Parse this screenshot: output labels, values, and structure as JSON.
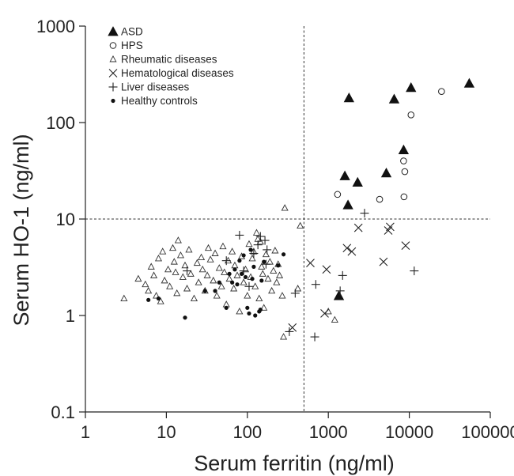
{
  "chart_data": {
    "type": "scatter",
    "title": "",
    "xlabel": "Serum ferritin (ng/ml)",
    "ylabel": "Serum HO-1 (ng/ml)",
    "xscale": "log",
    "yscale": "log",
    "xlim": [
      1,
      100000
    ],
    "ylim": [
      0.1,
      1000
    ],
    "xticks": [
      {
        "value": 1,
        "label": "1"
      },
      {
        "value": 10,
        "label": "10"
      },
      {
        "value": 100,
        "label": "100"
      },
      {
        "value": 1000,
        "label": "1000"
      },
      {
        "value": 10000,
        "label": "10000"
      },
      {
        "value": 100000,
        "label": "100000"
      }
    ],
    "yticks": [
      {
        "value": 0.1,
        "label": "0.1"
      },
      {
        "value": 1,
        "label": "1"
      },
      {
        "value": 10,
        "label": "10"
      },
      {
        "value": 100,
        "label": "100"
      },
      {
        "value": 1000,
        "label": "1000"
      }
    ],
    "reference_lines": [
      {
        "axis": "x",
        "value": 500,
        "style": "dashed"
      },
      {
        "axis": "y",
        "value": 10,
        "style": "dashed"
      }
    ],
    "legend_position": "top-left",
    "grid": false,
    "series": [
      {
        "name": "ASD",
        "marker": "filled-triangle",
        "points": [
          [
            1800,
            180
          ],
          [
            6500,
            175
          ],
          [
            10500,
            230
          ],
          [
            55000,
            255
          ],
          [
            8500,
            52
          ],
          [
            1600,
            28
          ],
          [
            2300,
            24
          ],
          [
            5200,
            30
          ],
          [
            1750,
            14
          ],
          [
            1350,
            1.6
          ]
        ]
      },
      {
        "name": "HPS",
        "marker": "open-circle",
        "points": [
          [
            25000,
            210
          ],
          [
            10500,
            120
          ],
          [
            8500,
            40
          ],
          [
            8800,
            31
          ],
          [
            8600,
            17
          ],
          [
            4300,
            16
          ],
          [
            1300,
            18
          ]
        ]
      },
      {
        "name": "Rheumatic diseases",
        "marker": "open-triangle",
        "points": [
          [
            3,
            1.5
          ],
          [
            4.5,
            2.4
          ],
          [
            5.5,
            2.1
          ],
          [
            6,
            1.8
          ],
          [
            6.5,
            3.2
          ],
          [
            7,
            2.6
          ],
          [
            7.5,
            1.6
          ],
          [
            8,
            3.9
          ],
          [
            8.5,
            1.4
          ],
          [
            9,
            4.6
          ],
          [
            9.5,
            2.3
          ],
          [
            10.5,
            3.0
          ],
          [
            11,
            2.0
          ],
          [
            12,
            5.0
          ],
          [
            12.5,
            3.6
          ],
          [
            13,
            2.8
          ],
          [
            13.5,
            1.7
          ],
          [
            14,
            6.0
          ],
          [
            15,
            4.2
          ],
          [
            16,
            2.5
          ],
          [
            17,
            3.3
          ],
          [
            18,
            1.9
          ],
          [
            19,
            4.8
          ],
          [
            20,
            2.7
          ],
          [
            22,
            1.5
          ],
          [
            24,
            3.5
          ],
          [
            25,
            2.2
          ],
          [
            27,
            4.0
          ],
          [
            28,
            3.0
          ],
          [
            30,
            1.8
          ],
          [
            32,
            2.6
          ],
          [
            33,
            5.0
          ],
          [
            35,
            3.8
          ],
          [
            38,
            2.3
          ],
          [
            40,
            4.4
          ],
          [
            42,
            1.6
          ],
          [
            45,
            3.1
          ],
          [
            48,
            2.0
          ],
          [
            50,
            5.2
          ],
          [
            52,
            2.8
          ],
          [
            55,
            1.3
          ],
          [
            58,
            3.7
          ],
          [
            60,
            2.4
          ],
          [
            65,
            4.6
          ],
          [
            68,
            1.9
          ],
          [
            70,
            3.3
          ],
          [
            75,
            2.6
          ],
          [
            80,
            1.1
          ],
          [
            85,
            4.1
          ],
          [
            90,
            2.2
          ],
          [
            95,
            3.0
          ],
          [
            100,
            1.6
          ],
          [
            105,
            5.5
          ],
          [
            110,
            2.5
          ],
          [
            115,
            3.9
          ],
          [
            120,
            4.6
          ],
          [
            125,
            2.0
          ],
          [
            130,
            7.2
          ],
          [
            135,
            6.2
          ],
          [
            140,
            1.5
          ],
          [
            145,
            5.8
          ],
          [
            150,
            3.2
          ],
          [
            155,
            2.7
          ],
          [
            160,
            1.2
          ],
          [
            170,
            4.3
          ],
          [
            180,
            2.4
          ],
          [
            190,
            3.6
          ],
          [
            200,
            1.8
          ],
          [
            210,
            2.9
          ],
          [
            220,
            4.7
          ],
          [
            230,
            2.2
          ],
          [
            240,
            3.4
          ],
          [
            250,
            2.6
          ],
          [
            270,
            1.6
          ],
          [
            280,
            0.6
          ],
          [
            290,
            13.0
          ],
          [
            420,
            1.9
          ],
          [
            450,
            8.5
          ],
          [
            1200,
            0.9
          ],
          [
            1000,
            1.1
          ]
        ]
      },
      {
        "name": "Hematological diseases",
        "marker": "x",
        "points": [
          [
            360,
            0.75
          ],
          [
            900,
            1.05
          ],
          [
            600,
            3.5
          ],
          [
            950,
            3.0
          ],
          [
            1700,
            5.0
          ],
          [
            1950,
            4.6
          ],
          [
            2350,
            8.1
          ],
          [
            4800,
            3.6
          ],
          [
            5500,
            7.6
          ],
          [
            5800,
            8.3
          ],
          [
            9000,
            5.3
          ]
        ]
      },
      {
        "name": "Liver diseases",
        "marker": "plus",
        "points": [
          [
            18,
            2.9
          ],
          [
            55,
            3.7
          ],
          [
            80,
            6.8
          ],
          [
            90,
            2.9
          ],
          [
            105,
            2.0
          ],
          [
            120,
            4.4
          ],
          [
            135,
            5.4
          ],
          [
            145,
            6.6
          ],
          [
            165,
            6.0
          ],
          [
            170,
            3.4
          ],
          [
            175,
            4.8
          ],
          [
            390,
            1.7
          ],
          [
            330,
            0.68
          ],
          [
            700,
            2.1
          ],
          [
            1400,
            1.8
          ],
          [
            1500,
            2.6
          ],
          [
            2800,
            11.5
          ],
          [
            11500,
            2.9
          ],
          [
            680,
            0.6
          ]
        ]
      },
      {
        "name": "Healthy controls",
        "marker": "filled-circle",
        "points": [
          [
            6,
            1.45
          ],
          [
            8,
            1.5
          ],
          [
            17,
            0.95
          ],
          [
            30,
            1.8
          ],
          [
            40,
            1.8
          ],
          [
            45,
            2.2
          ],
          [
            55,
            1.2
          ],
          [
            60,
            2.7
          ],
          [
            65,
            2.2
          ],
          [
            70,
            3.0
          ],
          [
            75,
            2.1
          ],
          [
            80,
            3.7
          ],
          [
            85,
            2.7
          ],
          [
            90,
            4.2
          ],
          [
            95,
            2.5
          ],
          [
            100,
            1.2
          ],
          [
            105,
            1.05
          ],
          [
            110,
            4.8
          ],
          [
            115,
            2.4
          ],
          [
            120,
            3.2
          ],
          [
            125,
            1.0
          ],
          [
            140,
            1.1
          ],
          [
            145,
            1.15
          ],
          [
            150,
            2.3
          ],
          [
            160,
            3.6
          ],
          [
            240,
            3.3
          ],
          [
            280,
            4.3
          ]
        ]
      }
    ]
  }
}
